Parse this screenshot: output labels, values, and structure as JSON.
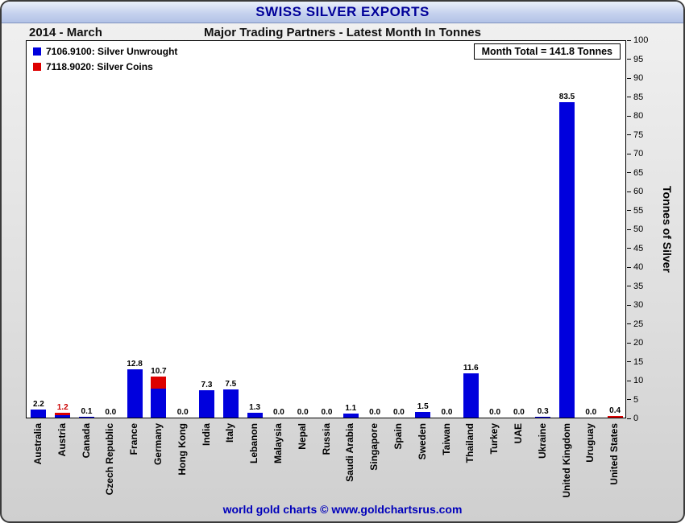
{
  "header": {
    "title": "SWISS SILVER EXPORTS",
    "period": "2014 - March",
    "subtitle": "Major Trading Partners - Latest Month In Tonnes"
  },
  "chart": {
    "month_total": "Month Total = 141.8 Tonnes"
  },
  "footer": {
    "credit": "world gold charts © www.goldchartsrus.com"
  },
  "chart_data": {
    "type": "bar",
    "stacked": true,
    "title": "SWISS SILVER EXPORTS",
    "subtitle": "Major Trading Partners - Latest Month In Tonnes",
    "ylabel": "Tonnes of Silver",
    "ylim": [
      0,
      100
    ],
    "ytick_step": 5,
    "grid": false,
    "legend_position": "upper-left",
    "categories": [
      "Australia",
      "Austria",
      "Canada",
      "Czech Republic",
      "France",
      "Germany",
      "Hong Kong",
      "India",
      "Italy",
      "Lebanon",
      "Malaysia",
      "Nepal",
      "Russia",
      "Saudi Arabia",
      "Singapore",
      "Spain",
      "Sweden",
      "Taiwan",
      "Thailand",
      "Turkey",
      "UAE",
      "Ukraine",
      "United Kingdom",
      "Uruguay",
      "United States"
    ],
    "series": [
      {
        "name": "7106.9100: Silver Unwrought",
        "color": "#0000dd",
        "values": [
          2.2,
          0.6,
          0.1,
          0.0,
          12.8,
          7.6,
          0.0,
          7.3,
          7.5,
          1.3,
          0.0,
          0.0,
          0.0,
          1.1,
          0.0,
          0.0,
          1.5,
          0.0,
          11.6,
          0.0,
          0.0,
          0.3,
          83.5,
          0.0,
          0.0
        ]
      },
      {
        "name": "7118.9020: Silver Coins",
        "color": "#dd0000",
        "values": [
          0.0,
          0.6,
          0.0,
          0.0,
          0.0,
          3.1,
          0.0,
          0.0,
          0.0,
          0.0,
          0.0,
          0.0,
          0.0,
          0.0,
          0.0,
          0.0,
          0.0,
          0.0,
          0.0,
          0.0,
          0.0,
          0.0,
          0.0,
          0.0,
          0.4
        ]
      }
    ],
    "totals_labels": [
      "2.2",
      "1.2",
      "0.1",
      "0.0",
      "12.8",
      "10.7",
      "0.0",
      "7.3",
      "7.5",
      "1.3",
      "0.0",
      "0.0",
      "0.0",
      "1.1",
      "0.0",
      "0.0",
      "1.5",
      "0.0",
      "11.6",
      "0.0",
      "0.0",
      "0.3",
      "83.5",
      "0.0",
      "0.4"
    ],
    "label_colors": [
      "#000000",
      "#cc0000",
      "#000000",
      "#000000",
      "#000000",
      "#000000",
      "#000000",
      "#000000",
      "#000000",
      "#000000",
      "#000000",
      "#000000",
      "#000000",
      "#000000",
      "#000000",
      "#000000",
      "#000000",
      "#000000",
      "#000000",
      "#000000",
      "#000000",
      "#000000",
      "#000000",
      "#000000",
      "#000000"
    ]
  }
}
